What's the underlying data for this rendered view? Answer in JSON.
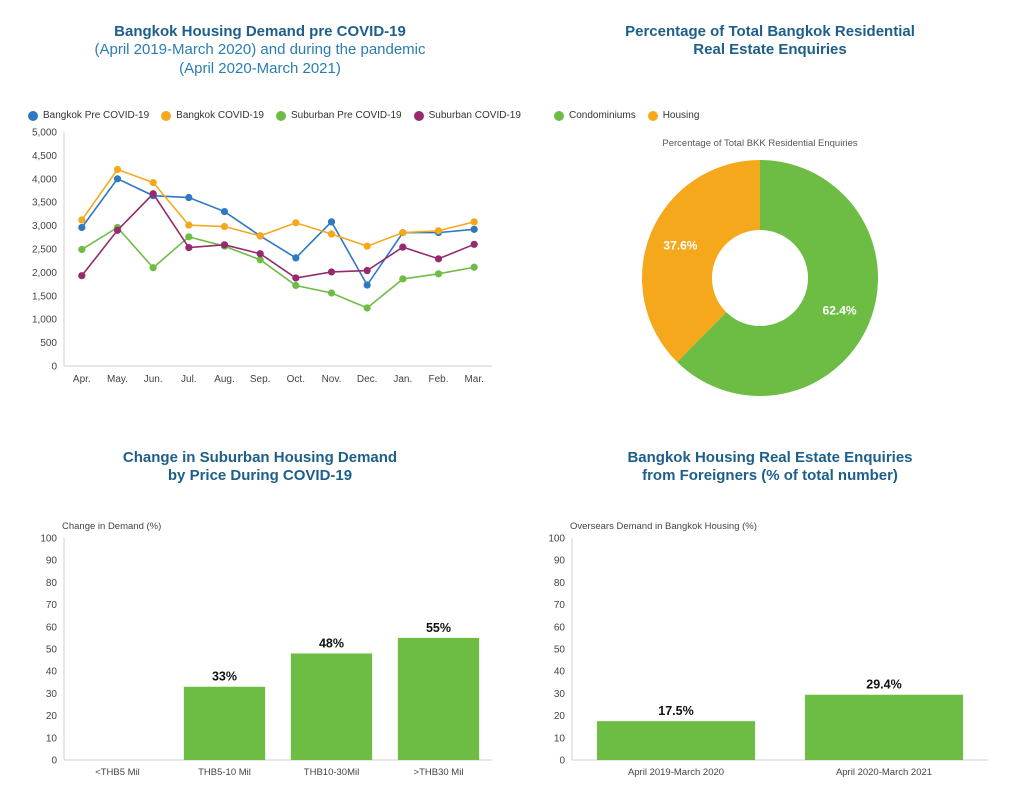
{
  "colors": {
    "blue": "#2f78c2",
    "orange": "#f5a81c",
    "green": "#6dbd45",
    "purple": "#952a6e",
    "title": "#1d5f8a",
    "subtitle": "#2a7db4"
  },
  "chart_data": [
    {
      "type": "line",
      "title": "Bangkok Housing Demand pre COVID-19",
      "subtitle_1": "(April 2019-March 2020) and during the pandemic",
      "subtitle_2": "(April 2020-March 2021)",
      "categories": [
        "Apr.",
        "May.",
        "Jun.",
        "Jul.",
        "Aug.",
        "Sep.",
        "Oct.",
        "Nov.",
        "Dec.",
        "Jan.",
        "Feb.",
        "Mar."
      ],
      "ylim": [
        0,
        5000
      ],
      "yticks": [
        "0",
        "500",
        "1,000",
        "1,500",
        "2,000",
        "2,500",
        "3,000",
        "3,500",
        "4,000",
        "4,500",
        "5,000"
      ],
      "legend_position": "top-left",
      "series": [
        {
          "name": "Bangkok Pre COVID-19",
          "color": "#2f78c2",
          "values": [
            2960,
            4000,
            3640,
            3600,
            3300,
            2780,
            2310,
            3080,
            1730,
            2850,
            2850,
            2920
          ]
        },
        {
          "name": "Bangkok COVID-19",
          "color": "#f5a81c",
          "values": [
            3120,
            4200,
            3920,
            3010,
            2980,
            2780,
            3060,
            2820,
            2560,
            2850,
            2890,
            3080
          ]
        },
        {
          "name": "Suburban Pre COVID-19",
          "color": "#6dbd45",
          "values": [
            2490,
            2960,
            2100,
            2760,
            2560,
            2270,
            1720,
            1560,
            1240,
            1860,
            1970,
            2110
          ]
        },
        {
          "name": "Suburban COVID-19",
          "color": "#952a6e",
          "values": [
            1930,
            2900,
            3680,
            2530,
            2590,
            2400,
            1880,
            2010,
            2040,
            2540,
            2290,
            2600
          ]
        }
      ]
    },
    {
      "type": "pie",
      "title_1": "Percentage of Total Bangkok Residential",
      "title_2": "Real Estate Enquiries",
      "inner_title": "Percentage of Total BKK Residential Enquiries",
      "legend_position": "top-left",
      "slices": [
        {
          "name": "Condominiums",
          "value": 62.4,
          "label": "62.4%",
          "color": "#6dbd45"
        },
        {
          "name": "Housing",
          "value": 37.6,
          "label": "37.6%",
          "color": "#f5a81c"
        }
      ]
    },
    {
      "type": "bar",
      "title_1": "Change in Suburban Housing Demand",
      "title_2": "by Price During COVID-19",
      "ylabel": "Change in Demand (%)",
      "ylim": [
        0,
        100
      ],
      "yticks": [
        "0",
        "10",
        "20",
        "30",
        "40",
        "50",
        "60",
        "70",
        "80",
        "90",
        "100"
      ],
      "categories": [
        "<THB5 Mil",
        "THB5-10 Mil",
        "THB10-30Mil",
        ">THB30 Mil"
      ],
      "values": [
        null,
        33,
        48,
        55
      ],
      "labels": [
        "",
        "33%",
        "48%",
        "55%"
      ],
      "color": "#6dbd45"
    },
    {
      "type": "bar",
      "title_1": "Bangkok Housing Real Estate Enquiries",
      "title_2": "from Foreigners (% of total number)",
      "ylabel": "Oversears Demand in Bangkok Housing (%)",
      "ylim": [
        0,
        100
      ],
      "yticks": [
        "0",
        "10",
        "20",
        "30",
        "40",
        "50",
        "60",
        "70",
        "80",
        "90",
        "100"
      ],
      "categories": [
        "April 2019-March 2020",
        "April 2020-March 2021"
      ],
      "values": [
        17.5,
        29.4
      ],
      "labels": [
        "17.5%",
        "29.4%"
      ],
      "color": "#6dbd45"
    }
  ]
}
